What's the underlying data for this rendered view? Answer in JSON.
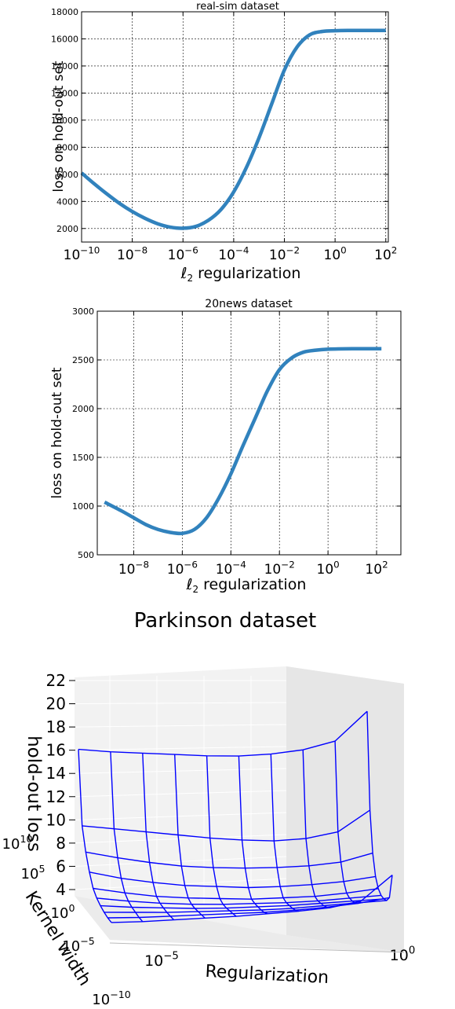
{
  "charts": [
    {
      "title": "real-sim dataset",
      "xlabel_main": "ℓ",
      "xlabel_sub": "2",
      "xlabel_rest": " regularization",
      "ylabel": "loss on hold-out set"
    },
    {
      "title": "20news dataset",
      "xlabel_main": "ℓ",
      "xlabel_sub": "2",
      "xlabel_rest": " regularization",
      "ylabel": "loss on hold-out set"
    },
    {
      "title": "Parkinson dataset",
      "xlabel": "Regularization",
      "ylabel": "Kernel width",
      "zlabel": "hold-out loss"
    }
  ],
  "chart_data": [
    {
      "type": "line",
      "title": "real-sim dataset",
      "xlabel": "ℓ2 regularization",
      "ylabel": "loss on hold-out set",
      "xscale": "log",
      "xlim_exp": [
        -10,
        2.1
      ],
      "ylim": [
        1000,
        18000
      ],
      "grid": true,
      "line_color": "#3182bd",
      "x_tick_exponents": [
        -10,
        -8,
        -6,
        -4,
        -2,
        0,
        2
      ],
      "y_ticks": [
        2000,
        4000,
        6000,
        8000,
        10000,
        12000,
        14000,
        16000,
        18000
      ],
      "points": [
        [
          -10,
          6100
        ],
        [
          -9.5,
          5300
        ],
        [
          -9,
          4550
        ],
        [
          -8.5,
          3850
        ],
        [
          -8,
          3250
        ],
        [
          -7.5,
          2750
        ],
        [
          -7,
          2350
        ],
        [
          -6.5,
          2100
        ],
        [
          -6,
          2020
        ],
        [
          -5.5,
          2150
        ],
        [
          -5,
          2600
        ],
        [
          -4.5,
          3400
        ],
        [
          -4,
          4700
        ],
        [
          -3.5,
          6500
        ],
        [
          -3,
          8700
        ],
        [
          -2.5,
          11200
        ],
        [
          -2,
          13700
        ],
        [
          -1.5,
          15400
        ],
        [
          -1,
          16300
        ],
        [
          -0.5,
          16550
        ],
        [
          0,
          16600
        ],
        [
          0.5,
          16620
        ],
        [
          1,
          16620
        ],
        [
          2,
          16620
        ]
      ]
    },
    {
      "type": "line",
      "title": "20news dataset",
      "xlabel": "ℓ2 regularization",
      "ylabel": "loss on hold-out set",
      "xscale": "log",
      "xlim_exp": [
        -9.5,
        3
      ],
      "ylim": [
        500,
        3000
      ],
      "grid": true,
      "line_color": "#3182bd",
      "x_tick_exponents": [
        -8,
        -6,
        -4,
        -2,
        0,
        2
      ],
      "y_ticks": [
        500,
        1000,
        1500,
        2000,
        2500,
        3000
      ],
      "points": [
        [
          -9.2,
          1040
        ],
        [
          -8.5,
          950
        ],
        [
          -8,
          880
        ],
        [
          -7.5,
          810
        ],
        [
          -7,
          760
        ],
        [
          -6.5,
          730
        ],
        [
          -6,
          720
        ],
        [
          -5.5,
          760
        ],
        [
          -5,
          880
        ],
        [
          -4.5,
          1080
        ],
        [
          -4,
          1330
        ],
        [
          -3.5,
          1620
        ],
        [
          -3,
          1900
        ],
        [
          -2.5,
          2180
        ],
        [
          -2,
          2400
        ],
        [
          -1.5,
          2520
        ],
        [
          -1,
          2580
        ],
        [
          -0.5,
          2600
        ],
        [
          0,
          2610
        ],
        [
          1,
          2615
        ],
        [
          2.2,
          2615
        ]
      ]
    },
    {
      "type": "surface",
      "title": "Parkinson dataset",
      "xlabel": "Regularization",
      "ylabel": "Kernel width",
      "zlabel": "hold-out loss",
      "x_tick_labels": [
        {
          "base": "10",
          "exp": "−5"
        },
        {
          "base": "10",
          "exp": "0"
        }
      ],
      "y_tick_labels": [
        {
          "base": "10",
          "exp": "10"
        },
        {
          "base": "10",
          "exp": "5"
        },
        {
          "base": "10",
          "exp": "0"
        },
        {
          "base": "10",
          "exp": "−5"
        },
        {
          "base": "10",
          "exp": "−10"
        }
      ],
      "z_ticks": [
        4,
        6,
        8,
        10,
        12,
        14,
        16,
        18,
        20,
        22
      ],
      "surface_color": "#0000ff",
      "z_grid": [
        [
          15.8,
          15.8,
          15.9,
          16.0,
          16.1,
          16.3,
          16.7,
          17.3,
          18.3,
          21.2
        ],
        [
          9.5,
          9.4,
          9.3,
          9.2,
          9.1,
          9.1,
          9.2,
          9.6,
          10.4,
          12.6
        ],
        [
          7.6,
          7.2,
          6.9,
          6.7,
          6.7,
          6.8,
          7.0,
          7.3,
          7.8,
          8.8
        ],
        [
          6.2,
          5.7,
          5.4,
          5.2,
          5.2,
          5.2,
          5.4,
          5.7,
          6.1,
          6.7
        ],
        [
          5.1,
          4.7,
          4.4,
          4.3,
          4.3,
          4.3,
          4.5,
          4.7,
          5.1,
          5.6
        ],
        [
          4.6,
          4.3,
          4.1,
          4.0,
          4.0,
          4.1,
          4.2,
          4.4,
          4.7,
          5.0
        ],
        [
          4.3,
          4.1,
          4.0,
          3.9,
          3.9,
          4.0,
          4.1,
          4.3,
          4.5,
          4.7
        ],
        [
          4.1,
          4.0,
          3.9,
          3.9,
          3.9,
          3.9,
          4.0,
          4.2,
          4.4,
          4.6
        ],
        [
          4.0,
          3.9,
          3.9,
          3.9,
          3.9,
          3.9,
          4.0,
          4.2,
          4.5,
          5.0
        ],
        [
          4.0,
          3.9,
          3.9,
          3.9,
          3.9,
          4.0,
          4.1,
          4.3,
          4.9,
          7.8
        ]
      ]
    }
  ]
}
